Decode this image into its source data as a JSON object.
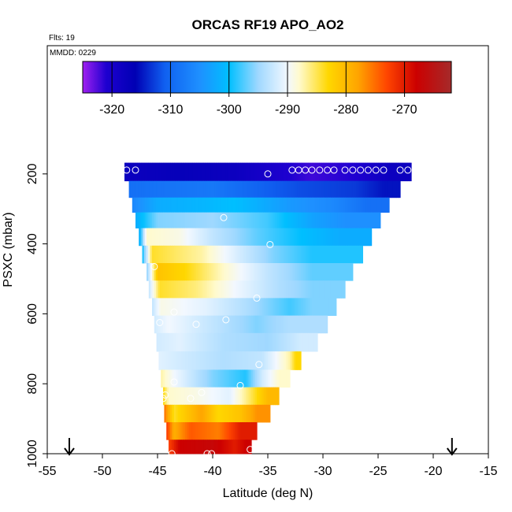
{
  "chart_data": {
    "type": "heatmap",
    "title": "ORCAS RF19 APO_AO2",
    "corner_labels": [
      "Flts: 19",
      "MMDD: 0229"
    ],
    "xlabel": "Latitude (deg N)",
    "ylabel": "PSXC (mbar)",
    "xlim": [
      -55,
      -15
    ],
    "ylim": [
      1000,
      100
    ],
    "x_ticks": [
      "-55",
      "-50",
      "-45",
      "-40",
      "-35",
      "-30",
      "-25",
      "-20",
      "-15"
    ],
    "x_tick_values": [
      -55,
      -50,
      -45,
      -40,
      -35,
      -30,
      -25,
      -20,
      -15
    ],
    "y_ticks": [
      "200",
      "400",
      "600",
      "800",
      "1000"
    ],
    "y_tick_values": [
      200,
      400,
      600,
      800,
      1000
    ],
    "colorbar": {
      "range": [
        -325,
        -262
      ],
      "tick_labels": [
        "-320",
        "-310",
        "-300",
        "-290",
        "-280",
        "-270"
      ],
      "tick_values": [
        -320,
        -310,
        -300,
        -290,
        -280,
        -270
      ],
      "stops": [
        {
          "v": -325,
          "c": "#a020f0"
        },
        {
          "v": -321,
          "c": "#1e00d0"
        },
        {
          "v": -316,
          "c": "#0000b4"
        },
        {
          "v": -311,
          "c": "#1060f0"
        },
        {
          "v": -305,
          "c": "#1e90ff"
        },
        {
          "v": -300,
          "c": "#00bfff"
        },
        {
          "v": -295,
          "c": "#a0d8ff"
        },
        {
          "v": -290,
          "c": "#f2f8ff"
        },
        {
          "v": -288,
          "c": "#fffacd"
        },
        {
          "v": -283,
          "c": "#ffd700"
        },
        {
          "v": -278,
          "c": "#ffa500"
        },
        {
          "v": -273,
          "c": "#ff4500"
        },
        {
          "v": -268,
          "c": "#cc0000"
        },
        {
          "v": -262,
          "c": "#a52a2a"
        }
      ]
    },
    "bands": [
      {
        "p": 195,
        "lat": [
          -48.0,
          -22.0
        ],
        "segs": [
          [
            -48.0,
            -318
          ],
          [
            -43.0,
            -317
          ],
          [
            -38.0,
            -318
          ],
          [
            -33.0,
            -321
          ],
          [
            -31.0,
            -322
          ],
          [
            -27.0,
            -321
          ],
          [
            -24.0,
            -318
          ]
        ]
      },
      {
        "p": 245,
        "lat": [
          -47.6,
          -23.0
        ],
        "segs": [
          [
            -47.6,
            -309
          ],
          [
            -40.0,
            -308
          ],
          [
            -35.0,
            -311
          ],
          [
            -32.0,
            -312
          ],
          [
            -27.0,
            -313
          ],
          [
            -24.5,
            -315
          ]
        ]
      },
      {
        "p": 290,
        "lat": [
          -47.3,
          -24.0
        ],
        "segs": [
          [
            -47.3,
            -306
          ],
          [
            -45.0,
            -302
          ],
          [
            -41.0,
            -301
          ],
          [
            -38.0,
            -300
          ],
          [
            -33.0,
            -304
          ],
          [
            -29.0,
            -306
          ],
          [
            -26.0,
            -309
          ]
        ]
      },
      {
        "p": 330,
        "lat": [
          -47.0,
          -24.8
        ],
        "segs": [
          [
            -47.0,
            -302
          ],
          [
            -45.0,
            -296
          ],
          [
            -40.0,
            -295
          ],
          [
            -35.0,
            -298
          ],
          [
            -31.0,
            -303
          ],
          [
            -28.0,
            -305
          ]
        ]
      },
      {
        "p": 380,
        "lat": [
          -46.7,
          -25.6
        ],
        "segs": [
          [
            -46.7,
            -303
          ],
          [
            -46.0,
            -288
          ],
          [
            -43.0,
            -289
          ],
          [
            -40.0,
            -293
          ],
          [
            -36.0,
            -297
          ],
          [
            -32.0,
            -300
          ],
          [
            -28.5,
            -302
          ]
        ]
      },
      {
        "p": 430,
        "lat": [
          -46.4,
          -26.4
        ],
        "segs": [
          [
            -46.4,
            -300
          ],
          [
            -45.5,
            -284
          ],
          [
            -41.0,
            -287
          ],
          [
            -37.5,
            -292
          ],
          [
            -34.5,
            -296
          ],
          [
            -31.0,
            -299
          ]
        ]
      },
      {
        "p": 480,
        "lat": [
          -46.0,
          -27.3
        ],
        "segs": [
          [
            -46.0,
            -296
          ],
          [
            -45.0,
            -281
          ],
          [
            -42.5,
            -283
          ],
          [
            -39.0,
            -288
          ],
          [
            -35.0,
            -293
          ],
          [
            -31.0,
            -297
          ]
        ]
      },
      {
        "p": 530,
        "lat": [
          -45.8,
          -28.0
        ],
        "segs": [
          [
            -45.8,
            -293
          ],
          [
            -44.8,
            -284
          ],
          [
            -41.5,
            -286
          ],
          [
            -38.0,
            -290
          ],
          [
            -34.0,
            -294
          ],
          [
            -31.0,
            -296
          ]
        ]
      },
      {
        "p": 580,
        "lat": [
          -45.5,
          -28.8
        ],
        "segs": [
          [
            -45.5,
            -293
          ],
          [
            -44.7,
            -289
          ],
          [
            -40.5,
            -291
          ],
          [
            -37.0,
            -294
          ],
          [
            -33.0,
            -298
          ],
          [
            -31.0,
            -296
          ]
        ]
      },
      {
        "p": 630,
        "lat": [
          -45.3,
          -29.6
        ],
        "segs": [
          [
            -45.3,
            -292
          ],
          [
            -44.0,
            -290
          ],
          [
            -40.0,
            -293
          ],
          [
            -36.0,
            -296
          ],
          [
            -33.0,
            -294
          ]
        ]
      },
      {
        "p": 680,
        "lat": [
          -45.1,
          -30.5
        ],
        "segs": [
          [
            -45.1,
            -292
          ],
          [
            -43.0,
            -291
          ],
          [
            -39.0,
            -294
          ],
          [
            -35.0,
            -295
          ],
          [
            -32.0,
            -292
          ]
        ]
      },
      {
        "p": 735,
        "lat": [
          -44.9,
          -32.0
        ],
        "segs": [
          [
            -44.9,
            -291
          ],
          [
            -43.0,
            -292
          ],
          [
            -39.0,
            -294
          ],
          [
            -35.5,
            -293
          ],
          [
            -33.0,
            -287
          ],
          [
            -32.5,
            -283
          ]
        ]
      },
      {
        "p": 785,
        "lat": [
          -44.7,
          -33.0
        ],
        "segs": [
          [
            -44.7,
            -287
          ],
          [
            -43.5,
            -290
          ],
          [
            -40.0,
            -296
          ],
          [
            -37.0,
            -299
          ],
          [
            -35.5,
            -292
          ],
          [
            -34.0,
            -288
          ]
        ]
      },
      {
        "p": 835,
        "lat": [
          -44.5,
          -34.0
        ],
        "segs": [
          [
            -44.5,
            -283
          ],
          [
            -44.0,
            -288
          ],
          [
            -41.5,
            -289
          ],
          [
            -38.5,
            -291
          ],
          [
            -36.5,
            -285
          ],
          [
            -35.0,
            -280
          ]
        ]
      },
      {
        "p": 885,
        "lat": [
          -44.4,
          -34.8
        ],
        "segs": [
          [
            -44.4,
            -275
          ],
          [
            -43.5,
            -284
          ],
          [
            -41.0,
            -278
          ],
          [
            -39.5,
            -283
          ],
          [
            -37.5,
            -281
          ],
          [
            -36.0,
            -277
          ]
        ]
      },
      {
        "p": 935,
        "lat": [
          -44.2,
          -36.0
        ],
        "segs": [
          [
            -44.2,
            -272
          ],
          [
            -43.5,
            -279
          ],
          [
            -42.0,
            -274
          ],
          [
            -39.5,
            -276
          ],
          [
            -37.5,
            -270
          ]
        ]
      },
      {
        "p": 985,
        "lat": [
          -44.0,
          -36.5
        ],
        "segs": [
          [
            -44.0,
            -273
          ],
          [
            -43.0,
            -268
          ],
          [
            -40.0,
            -267
          ],
          [
            -38.0,
            -270
          ],
          [
            -37.0,
            -268
          ]
        ]
      }
    ],
    "points": [
      {
        "lat": -47.8,
        "p": 189
      },
      {
        "lat": -47.0,
        "p": 189
      },
      {
        "lat": -35.0,
        "p": 200
      },
      {
        "lat": -32.8,
        "p": 189
      },
      {
        "lat": -32.2,
        "p": 189
      },
      {
        "lat": -31.6,
        "p": 189
      },
      {
        "lat": -31.0,
        "p": 189
      },
      {
        "lat": -30.3,
        "p": 189
      },
      {
        "lat": -29.6,
        "p": 189
      },
      {
        "lat": -29.0,
        "p": 189
      },
      {
        "lat": -28.0,
        "p": 189
      },
      {
        "lat": -27.3,
        "p": 189
      },
      {
        "lat": -26.6,
        "p": 189
      },
      {
        "lat": -25.9,
        "p": 189
      },
      {
        "lat": -25.2,
        "p": 189
      },
      {
        "lat": -24.5,
        "p": 189
      },
      {
        "lat": -23.0,
        "p": 189
      },
      {
        "lat": -22.3,
        "p": 189
      },
      {
        "lat": -39.0,
        "p": 325
      },
      {
        "lat": -34.8,
        "p": 402
      },
      {
        "lat": -45.3,
        "p": 465
      },
      {
        "lat": -36.0,
        "p": 555
      },
      {
        "lat": -43.5,
        "p": 595
      },
      {
        "lat": -38.8,
        "p": 617
      },
      {
        "lat": -44.8,
        "p": 625
      },
      {
        "lat": -41.5,
        "p": 630
      },
      {
        "lat": -35.8,
        "p": 745
      },
      {
        "lat": -43.5,
        "p": 795
      },
      {
        "lat": -37.5,
        "p": 805
      },
      {
        "lat": -44.3,
        "p": 832
      },
      {
        "lat": -41.0,
        "p": 825
      },
      {
        "lat": -42.0,
        "p": 842
      },
      {
        "lat": -44.5,
        "p": 842
      },
      {
        "lat": -36.6,
        "p": 988
      },
      {
        "lat": -43.7,
        "p": 1000
      },
      {
        "lat": -40.5,
        "p": 1000
      },
      {
        "lat": -40.1,
        "p": 1000
      }
    ],
    "arrows": [
      -53.0,
      -18.3
    ]
  }
}
